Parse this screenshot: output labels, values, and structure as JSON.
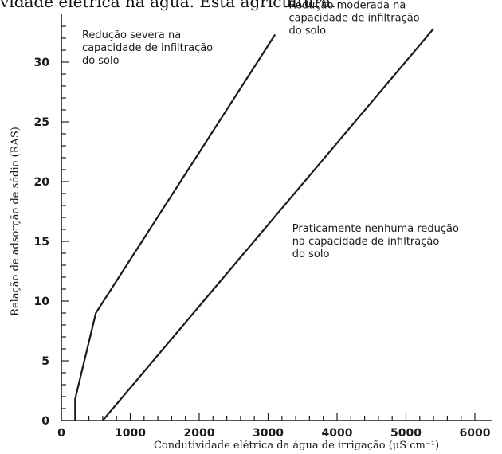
{
  "header_fragment": "vidade elétrica na água. Esta    agricultura.",
  "chart_data": {
    "type": "line",
    "xlabel": "Condutividade elétrica da água de irrigação (μS cm⁻¹)",
    "ylabel": "Relação de adsorção de sódio (RAS)",
    "xlim": [
      0,
      6000
    ],
    "ylim": [
      0,
      34
    ],
    "x_ticks": [
      0,
      1000,
      2000,
      3000,
      4000,
      5000,
      6000
    ],
    "y_ticks": [
      0,
      5,
      10,
      15,
      20,
      25,
      30
    ],
    "series": [
      {
        "points": [
          [
            200,
            0
          ],
          [
            200,
            1.8
          ],
          [
            500,
            9
          ],
          [
            3100,
            32.3
          ]
        ]
      },
      {
        "points": [
          [
            600,
            0
          ],
          [
            5400,
            32.8
          ]
        ]
      }
    ],
    "annotations": [
      {
        "lines": [
          "Redução severa na",
          "capacidade de infiltração",
          "do solo"
        ],
        "x": 300,
        "y": 32
      },
      {
        "lines": [
          "Redução moderada na",
          "capacidade de infiltração",
          "do solo"
        ],
        "x": 3300,
        "y": 34.5
      },
      {
        "lines": [
          "Praticamente nenhuma redução",
          "na capacidade de infiltração",
          "do solo"
        ],
        "x": 3350,
        "y": 15.8
      }
    ]
  }
}
